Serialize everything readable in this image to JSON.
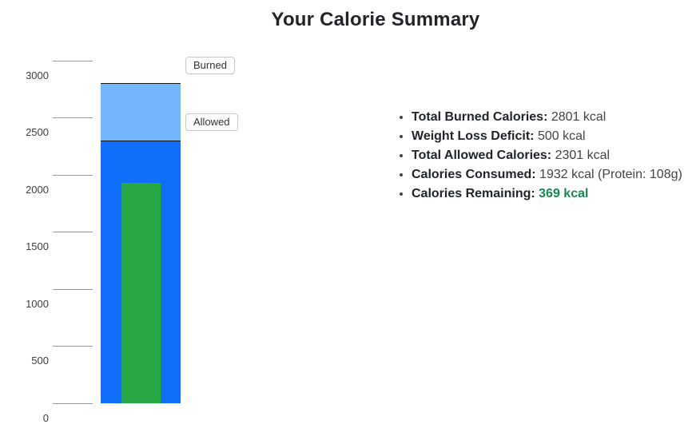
{
  "title": "Your Calorie Summary",
  "chart_data": {
    "type": "bar",
    "title": "Your Calorie Summary",
    "unit": "kcal",
    "ylim": [
      0,
      3200
    ],
    "yticks": [
      0,
      500,
      1000,
      1500,
      2000,
      2500,
      3000
    ],
    "grid": false,
    "bars": [
      {
        "name": "Burned",
        "value": 2801,
        "color": "#74b6fc",
        "inner": false,
        "top_border": true
      },
      {
        "name": "Allowed",
        "value": 2301,
        "color": "#0f6efa",
        "inner": false,
        "top_border": true
      },
      {
        "name": "Consumed",
        "value": 1932,
        "color": "#28a745",
        "inner": true,
        "top_border": false
      }
    ],
    "segment_labels": [
      {
        "text": "Burned",
        "value": 2801
      },
      {
        "text": "Allowed",
        "value": 2301
      }
    ]
  },
  "summary": {
    "highlight_color": "#198754",
    "items": [
      {
        "label": "Total Burned Calories:",
        "value": "2801 kcal"
      },
      {
        "label": "Weight Loss Deficit:",
        "value": "500 kcal"
      },
      {
        "label": "Total Allowed Calories:",
        "value": "2301 kcal"
      },
      {
        "label": "Calories Consumed:",
        "value": "1932 kcal (Protein: 108g)"
      },
      {
        "label": "Calories Remaining:",
        "value": "369 kcal"
      }
    ]
  }
}
